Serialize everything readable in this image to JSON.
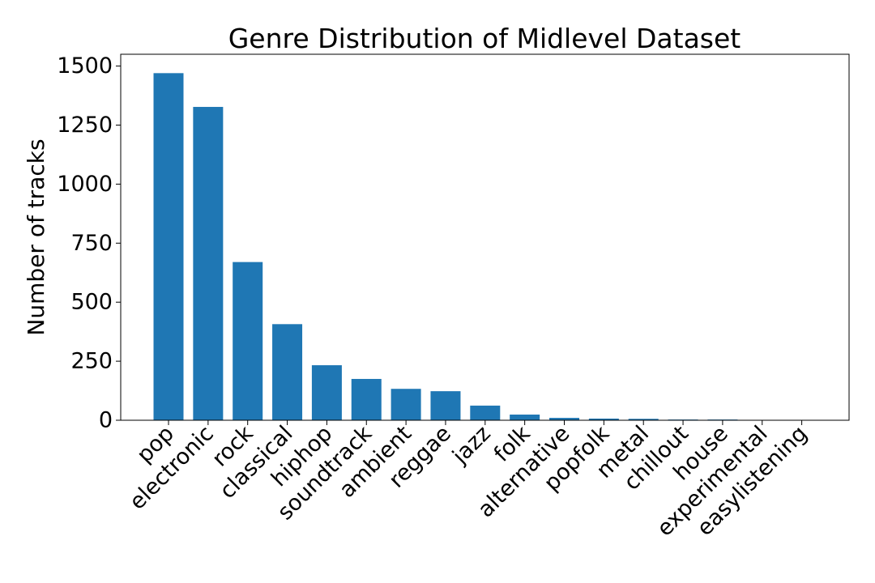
{
  "chart_data": {
    "type": "bar",
    "title": "Genre Distribution of Midlevel Dataset",
    "xlabel": "",
    "ylabel": "Number of tracks",
    "categories": [
      "pop",
      "electronic",
      "rock",
      "classical",
      "hiphop",
      "soundtrack",
      "ambient",
      "reggae",
      "jazz",
      "folk",
      "alternative",
      "popfolk",
      "metal",
      "chillout",
      "house",
      "experimental",
      "easylistening"
    ],
    "values": [
      1470,
      1327,
      670,
      407,
      233,
      175,
      133,
      123,
      62,
      24,
      10,
      7,
      6,
      3,
      3,
      1,
      1
    ],
    "ylim": [
      0,
      1550
    ],
    "yticks": [
      0,
      250,
      500,
      750,
      1000,
      1250,
      1500
    ],
    "ytick_labels": [
      "0",
      "250",
      "500",
      "750",
      "1000",
      "1250",
      "1500"
    ],
    "bar_color": "#1f77b4",
    "grid": false,
    "legend": false
  }
}
